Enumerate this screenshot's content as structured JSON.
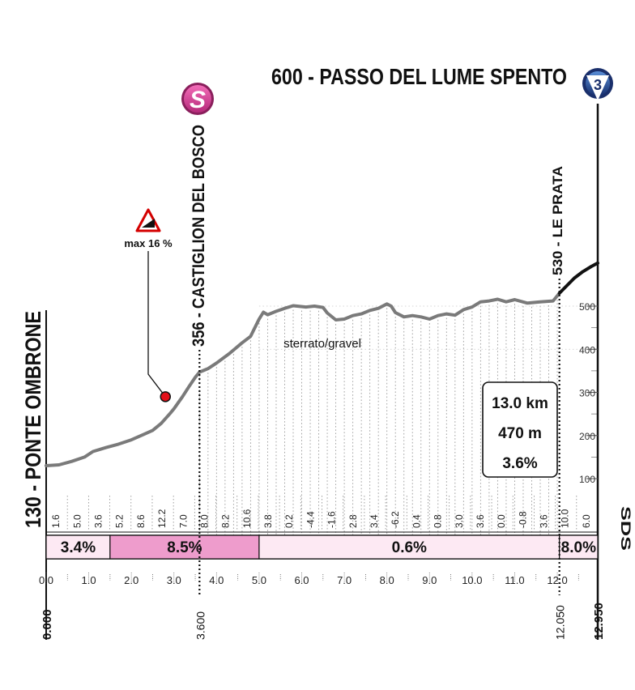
{
  "header": {
    "title": "600 - PASSO DEL LUME SPENTO",
    "badge_number": "3",
    "start_label": "130 - PONTE OMBRONE",
    "waypoints": [
      {
        "label": "356 - CASTIGLION DEL BOSCO",
        "badge": "S"
      },
      {
        "label": "530 - LE PRATA"
      }
    ],
    "sds_label": "SDS"
  },
  "summary": {
    "distance": "13.0 km",
    "elevation_gain": "470 m",
    "avg_gradient": "3.6%"
  },
  "warning": {
    "label": "max 16 %"
  },
  "annotations": {
    "surface": "sterrato/gravel"
  },
  "colors": {
    "profile_line": "#7a7a7a",
    "final_climb_line": "#111111",
    "sprint_badge": "#e0489e",
    "gradient_pink": "#ee9ccc",
    "gradient_light": "#fde9f3",
    "badge_blue": "#1f3c8a",
    "warning_red": "#d40000",
    "marker_red": "#e3101a"
  },
  "chart_data": {
    "type": "line",
    "xlabel": "",
    "ylabel": "",
    "xlim": [
      0,
      12.95
    ],
    "ylim": [
      100,
      600
    ],
    "y_ticks": [
      "100",
      "200",
      "300",
      "400",
      "500"
    ],
    "x_ticks": [
      "0.0",
      "1.0",
      "2.0",
      "3.0",
      "4.0",
      "5.0",
      "6.0",
      "7.0",
      "8.0",
      "9.0",
      "10.0",
      "11.0",
      "12.0"
    ],
    "marker_distances": [
      "0.000",
      "3.600",
      "12.050",
      "12.950"
    ],
    "grade_labels": [
      "1.6",
      "5.0",
      "3.6",
      "5.2",
      "8.6",
      "12.2",
      "7.0",
      "8.0",
      "8.2",
      "10.6",
      "3.8",
      "0.2",
      "-4.4",
      "-1.6",
      "2.8",
      "3.4",
      "-6.2",
      "0.4",
      "0.8",
      "3.0",
      "3.6",
      "0.0",
      "-0.8",
      "3.6",
      "10.0",
      "6.0"
    ],
    "segments": [
      {
        "from": 0.0,
        "to": 1.5,
        "value": "3.4%"
      },
      {
        "from": 1.5,
        "to": 5.0,
        "value": "8.5%"
      },
      {
        "from": 5.0,
        "to": 12.05,
        "value": "0.6%"
      },
      {
        "from": 12.05,
        "to": 12.95,
        "value": "8.0%"
      }
    ],
    "series": [
      {
        "values": [
          [
            0.0,
            130
          ],
          [
            0.3,
            132
          ],
          [
            0.6,
            140
          ],
          [
            0.9,
            150
          ],
          [
            1.1,
            163
          ],
          [
            1.4,
            172
          ],
          [
            1.7,
            180
          ],
          [
            2.0,
            190
          ],
          [
            2.3,
            203
          ],
          [
            2.5,
            212
          ],
          [
            2.7,
            228
          ],
          [
            2.9,
            250
          ],
          [
            3.0,
            262
          ],
          [
            3.2,
            290
          ],
          [
            3.35,
            313
          ],
          [
            3.5,
            335
          ],
          [
            3.6,
            347
          ],
          [
            3.8,
            355
          ],
          [
            4.0,
            368
          ],
          [
            4.3,
            390
          ],
          [
            4.6,
            415
          ],
          [
            4.8,
            430
          ],
          [
            5.0,
            470
          ],
          [
            5.1,
            486
          ],
          [
            5.2,
            480
          ],
          [
            5.4,
            488
          ],
          [
            5.6,
            495
          ],
          [
            5.8,
            501
          ],
          [
            6.1,
            498
          ],
          [
            6.3,
            500
          ],
          [
            6.5,
            497
          ],
          [
            6.6,
            484
          ],
          [
            6.8,
            468
          ],
          [
            7.0,
            470
          ],
          [
            7.2,
            478
          ],
          [
            7.4,
            482
          ],
          [
            7.6,
            490
          ],
          [
            7.8,
            495
          ],
          [
            8.0,
            505
          ],
          [
            8.1,
            500
          ],
          [
            8.2,
            485
          ],
          [
            8.4,
            475
          ],
          [
            8.6,
            478
          ],
          [
            8.8,
            475
          ],
          [
            9.0,
            470
          ],
          [
            9.2,
            478
          ],
          [
            9.4,
            482
          ],
          [
            9.6,
            479
          ],
          [
            9.8,
            492
          ],
          [
            10.0,
            498
          ],
          [
            10.2,
            510
          ],
          [
            10.4,
            512
          ],
          [
            10.6,
            516
          ],
          [
            10.8,
            510
          ],
          [
            11.0,
            515
          ],
          [
            11.3,
            507
          ],
          [
            11.6,
            510
          ],
          [
            11.9,
            512
          ],
          [
            12.05,
            530
          ]
        ]
      },
      {
        "values": [
          [
            12.05,
            530
          ],
          [
            12.2,
            545
          ],
          [
            12.4,
            565
          ],
          [
            12.6,
            580
          ],
          [
            12.8,
            592
          ],
          [
            12.95,
            600
          ]
        ]
      }
    ],
    "gravel_range": [
      5.0,
      12.05
    ],
    "max_gradient_point": {
      "x": 2.8,
      "y": 290
    }
  }
}
